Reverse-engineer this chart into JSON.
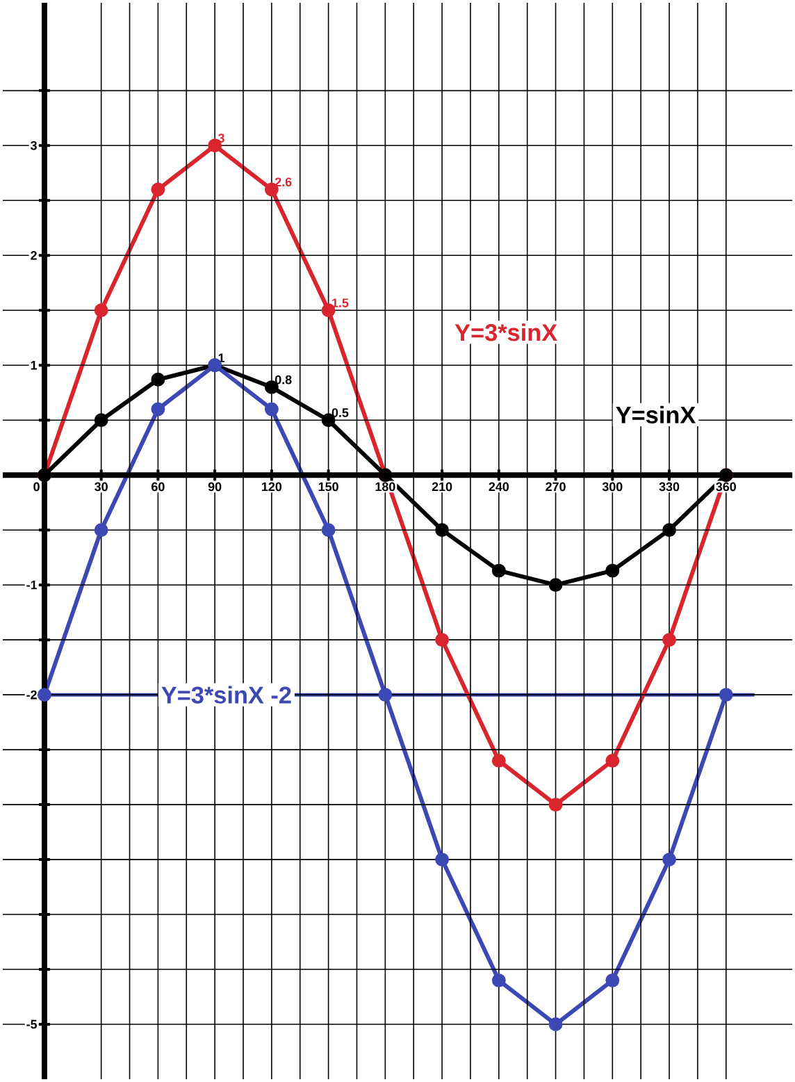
{
  "chart_data": {
    "type": "line",
    "x": [
      0,
      30,
      60,
      90,
      120,
      150,
      180,
      210,
      240,
      270,
      300,
      330,
      360
    ],
    "series": [
      {
        "name": "Y=3*sinX",
        "color": "#d9262e",
        "values": [
          0,
          1.5,
          2.6,
          3,
          2.6,
          1.5,
          0,
          -1.5,
          -2.6,
          -3,
          -2.6,
          -1.5,
          0
        ],
        "value_labels": [
          null,
          null,
          null,
          "3",
          "2.6",
          "1.5",
          null,
          null,
          null,
          null,
          null,
          null,
          null
        ]
      },
      {
        "name": "Y=sinX",
        "color": "#000000",
        "values": [
          0,
          0.5,
          0.87,
          1,
          0.8,
          0.5,
          0,
          -0.5,
          -0.87,
          -1,
          -0.87,
          -0.5,
          0
        ],
        "value_labels": [
          null,
          null,
          null,
          "1",
          "0.8",
          "0.5",
          null,
          null,
          null,
          null,
          null,
          null,
          null
        ]
      },
      {
        "name": "Y=3*sinX -2",
        "color": "#3c48b4",
        "values": [
          -2,
          -0.5,
          0.6,
          1,
          0.6,
          -0.5,
          -2,
          -3.5,
          -4.6,
          -5,
          -4.6,
          -3.5,
          -2
        ]
      }
    ],
    "xlim": [
      -22,
      395
    ],
    "ylim": [
      -5.5,
      4.3
    ],
    "xticks": [
      {
        "value": 0,
        "label": "0"
      },
      30,
      60,
      90,
      120,
      150,
      180,
      210,
      240,
      270,
      300,
      330,
      360
    ],
    "yticks": [
      {
        "value": -5,
        "label": "-5"
      },
      {
        "value": -4.5,
        "label": null
      },
      {
        "value": -4,
        "label": null
      },
      {
        "value": -3.5,
        "label": null
      },
      {
        "value": -3,
        "label": null
      },
      {
        "value": -2.5,
        "label": null
      },
      {
        "value": -2,
        "label": "-2"
      },
      {
        "value": -1.5,
        "label": null
      },
      {
        "value": -1,
        "label": "-1"
      },
      {
        "value": -0.5,
        "label": null
      },
      {
        "value": 0.5,
        "label": null
      },
      1,
      {
        "value": 1.5,
        "label": null
      },
      2,
      {
        "value": 2.5,
        "label": null
      },
      3,
      {
        "value": 3.5,
        "label": null
      }
    ],
    "ref_lines": [
      {
        "axis": "y",
        "value": -2,
        "color": "#3c48b4"
      }
    ],
    "grid": true,
    "marker": "circle",
    "line_style": "solid"
  }
}
